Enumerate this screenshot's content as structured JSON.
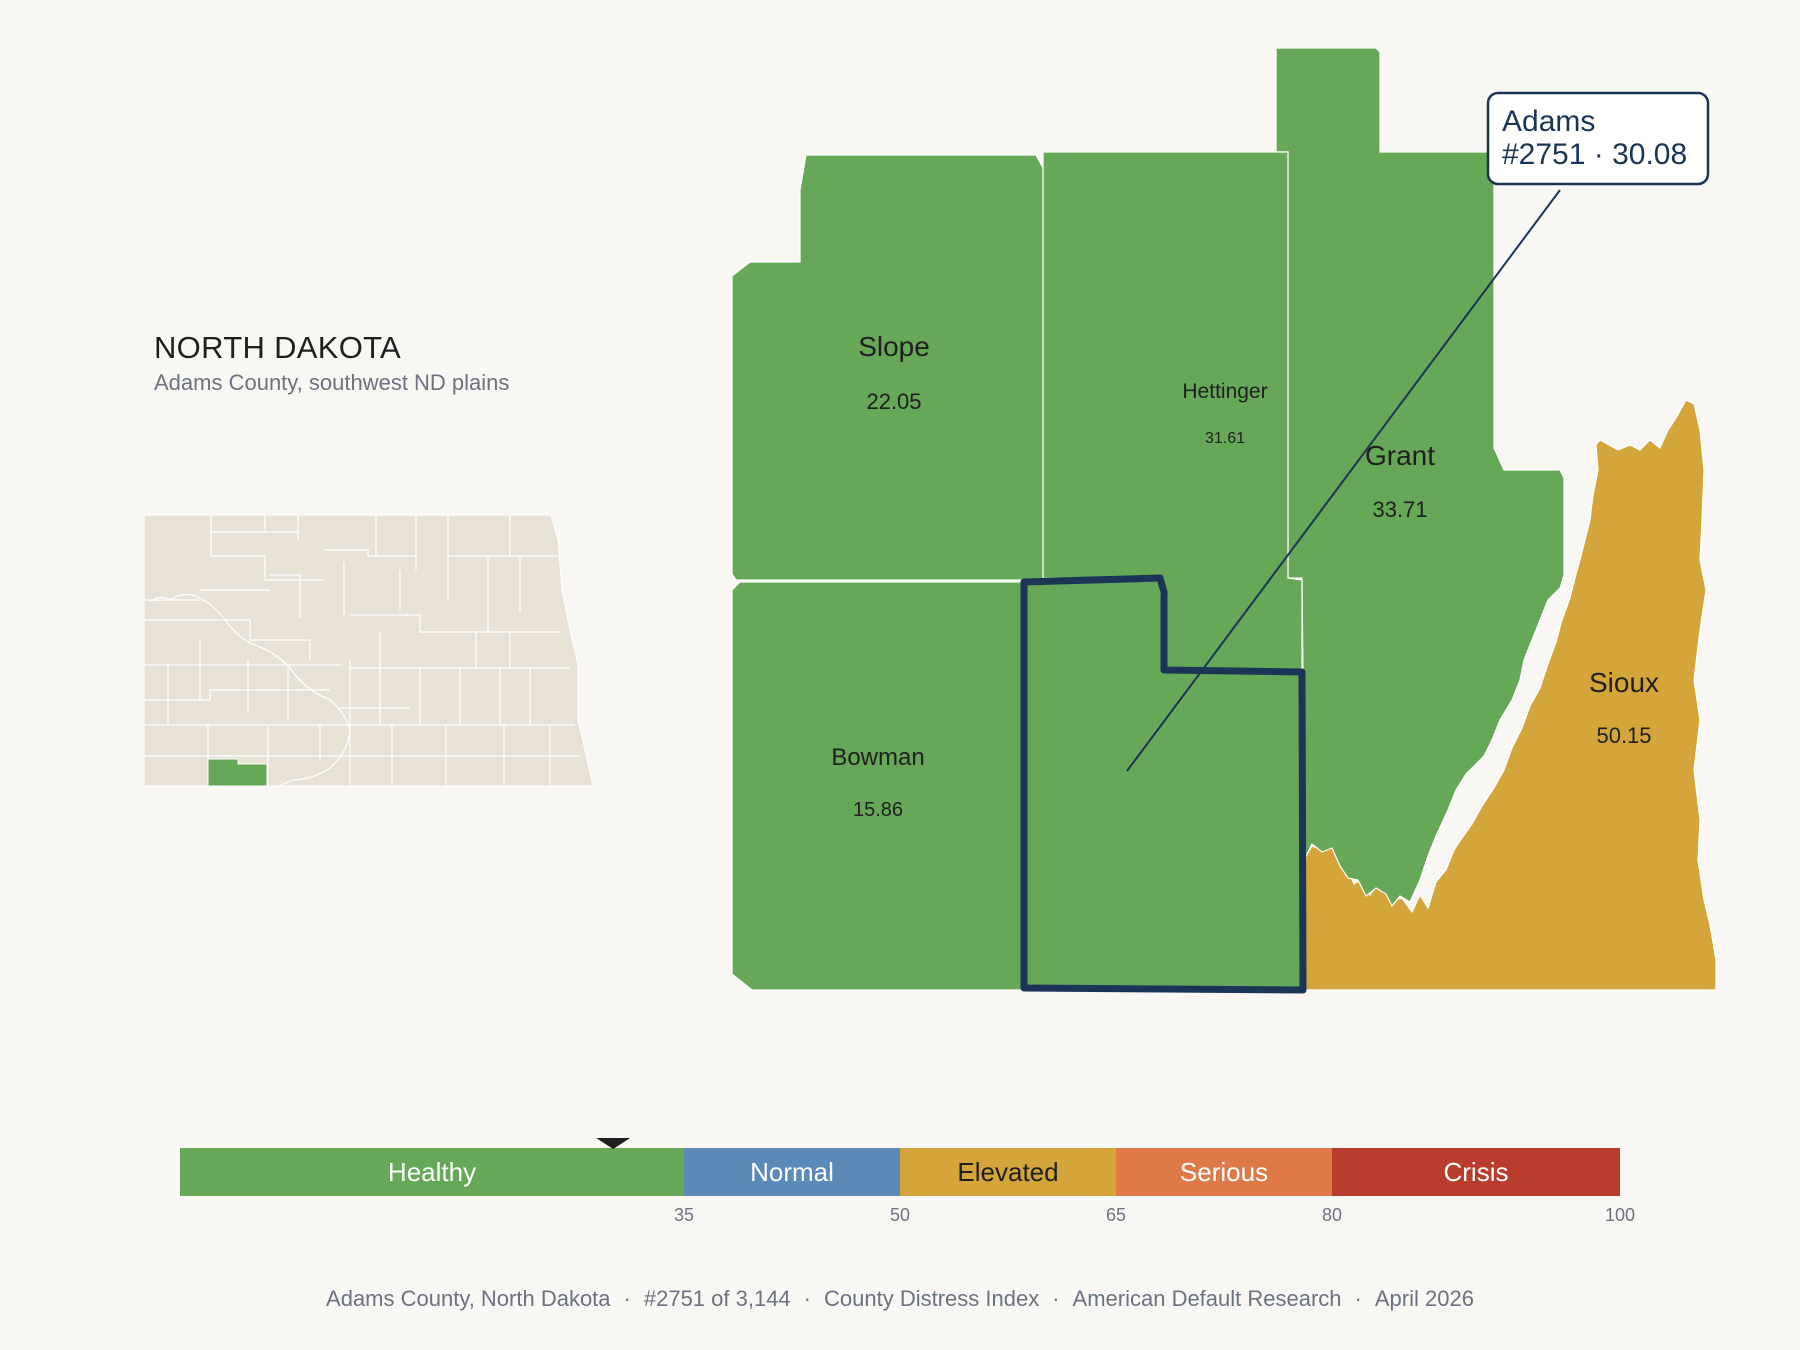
{
  "state": {
    "title": "NORTH DAKOTA",
    "subtitle": "Adams County, southwest ND plains"
  },
  "colors": {
    "healthy": "#66a758",
    "normal": "#5b8ab8",
    "elevated": "#d4a53a",
    "serious": "#dd7a48",
    "crisis": "#b93c2c",
    "highlight": "#1c3557",
    "locator_base": "#e8e2d6"
  },
  "counties": [
    {
      "name": "Slope",
      "value": "22.05",
      "category": "healthy"
    },
    {
      "name": "Hettinger",
      "value": "31.61",
      "category": "healthy"
    },
    {
      "name": "Grant",
      "value": "33.71",
      "category": "healthy"
    },
    {
      "name": "Bowman",
      "value": "15.86",
      "category": "healthy"
    },
    {
      "name": "Sioux",
      "value": "50.15",
      "category": "elevated"
    },
    {
      "name": "Adams",
      "value": "30.08",
      "category": "healthy",
      "highlighted": true
    }
  ],
  "callout": {
    "name": "Adams",
    "detail": "#2751 · 30.08"
  },
  "legend": {
    "segments": [
      {
        "label": "Healthy",
        "from": 0,
        "to": 35,
        "color": "#66a758",
        "text_color": "#ffffff"
      },
      {
        "label": "Normal",
        "from": 35,
        "to": 50,
        "color": "#5b8ab8",
        "text_color": "#ffffff"
      },
      {
        "label": "Elevated",
        "from": 50,
        "to": 65,
        "color": "#d4a53a",
        "text_color": "#1f1f1f"
      },
      {
        "label": "Serious",
        "from": 65,
        "to": 80,
        "color": "#dd7a48",
        "text_color": "#ffffff"
      },
      {
        "label": "Crisis",
        "from": 80,
        "to": 100,
        "color": "#b93c2c",
        "text_color": "#ffffff"
      }
    ],
    "ticks": [
      "35",
      "50",
      "65",
      "80",
      "100"
    ],
    "marker_value": 30.08
  },
  "footer": {
    "items": [
      "Adams County, North Dakota",
      "#2751 of 3,144",
      "County Distress Index",
      "American Default Research",
      "April 2026"
    ]
  }
}
